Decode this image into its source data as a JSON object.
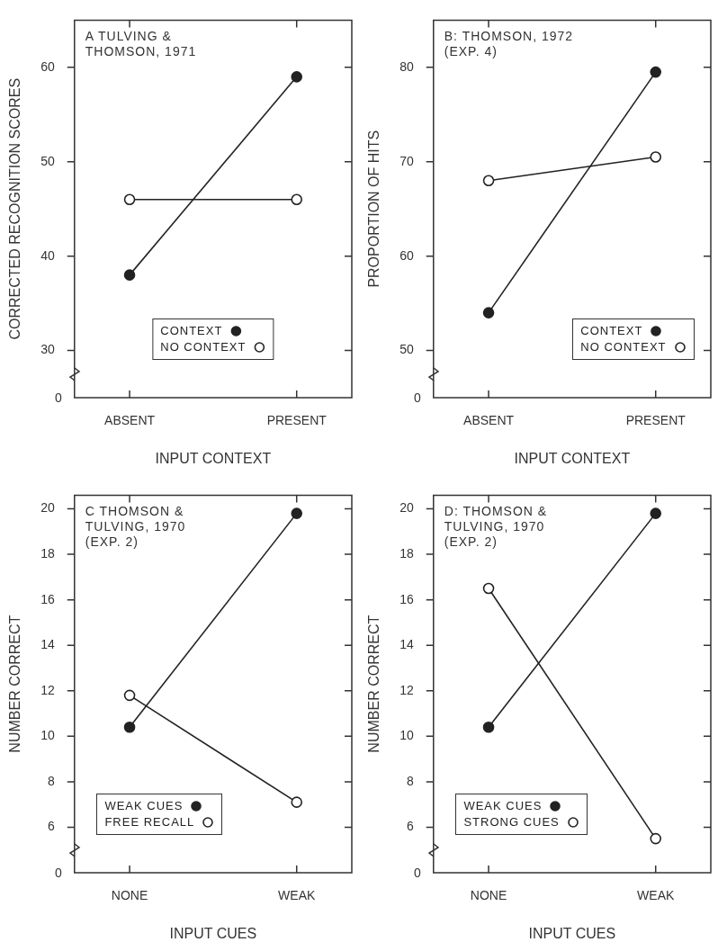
{
  "chart_data": [
    {
      "type": "line",
      "title": "A TULVING & THOMSON, 1971",
      "xlabel": "INPUT CONTEXT",
      "ylabel": "CORRECTED RECOGNITION SCORES",
      "categories": [
        "ABSENT",
        "PRESENT"
      ],
      "series": [
        {
          "name": "CONTEXT",
          "color": "#222222",
          "values": [
            38,
            59
          ]
        },
        {
          "name": "NO CONTEXT",
          "color": "#222222",
          "values": [
            46,
            46
          ]
        }
      ],
      "ylim": [
        25,
        65
      ],
      "yticks": [
        30,
        40,
        50,
        60
      ],
      "annotations": [
        "0"
      ],
      "legend": "bottom",
      "marker": "circle",
      "line_style": "solid"
    },
    {
      "type": "line",
      "title": "B: THOMSON, 1972",
      "subtitle": "(EXP. 4)",
      "xlabel": "INPUT CONTEXT",
      "ylabel": "PROPORTION OF HITS",
      "categories": [
        "ABSENT",
        "PRESENT"
      ],
      "series": [
        {
          "name": "CONTEXT",
          "color": "#222222",
          "values": [
            54,
            79.5
          ]
        },
        {
          "name": "NO CONTEXT",
          "color": "#222222",
          "values": [
            68,
            70.5
          ]
        }
      ],
      "ylim": [
        45,
        85
      ],
      "yticks": [
        50,
        60,
        70,
        80
      ],
      "annotations": [
        "0"
      ],
      "legend": "bottom right",
      "marker": "circle",
      "line_style": "solid"
    },
    {
      "type": "line",
      "title": "C THOMSON & TULVING, 1970",
      "subtitle": "(EXP. 2)",
      "xlabel": "INPUT CUES",
      "ylabel": "NUMBER CORRECT",
      "categories": [
        "NONE",
        "WEAK"
      ],
      "series": [
        {
          "name": "WEAK CUES",
          "color": "#222222",
          "values": [
            10.4,
            19.8
          ]
        },
        {
          "name": "FREE RECALL",
          "color": "#222222",
          "values": [
            11.8,
            7.1
          ]
        }
      ],
      "ylim": [
        4,
        20.6
      ],
      "yticks": [
        6,
        8,
        10,
        12,
        14,
        16,
        18,
        20
      ],
      "annotations": [
        "0"
      ],
      "legend": "bottom left",
      "marker": "circle",
      "line_style": "solid"
    },
    {
      "type": "line",
      "title": "D: THOMSON & TULVING, 1970",
      "subtitle": "(EXP. 2)",
      "xlabel": "INPUT CUES",
      "ylabel": "NUMBER CORRECT",
      "categories": [
        "NONE",
        "WEAK"
      ],
      "series": [
        {
          "name": "WEAK CUES",
          "color": "#222222",
          "values": [
            10.4,
            19.8
          ]
        },
        {
          "name": "STRONG CUES",
          "color": "#222222",
          "values": [
            16.5,
            5.5
          ]
        }
      ],
      "ylim": [
        4,
        20.6
      ],
      "yticks": [
        6,
        8,
        10,
        12,
        14,
        16,
        18,
        20
      ],
      "annotations": [
        "0"
      ],
      "legend": "bottom left",
      "marker": "circle",
      "line_style": "solid"
    }
  ]
}
